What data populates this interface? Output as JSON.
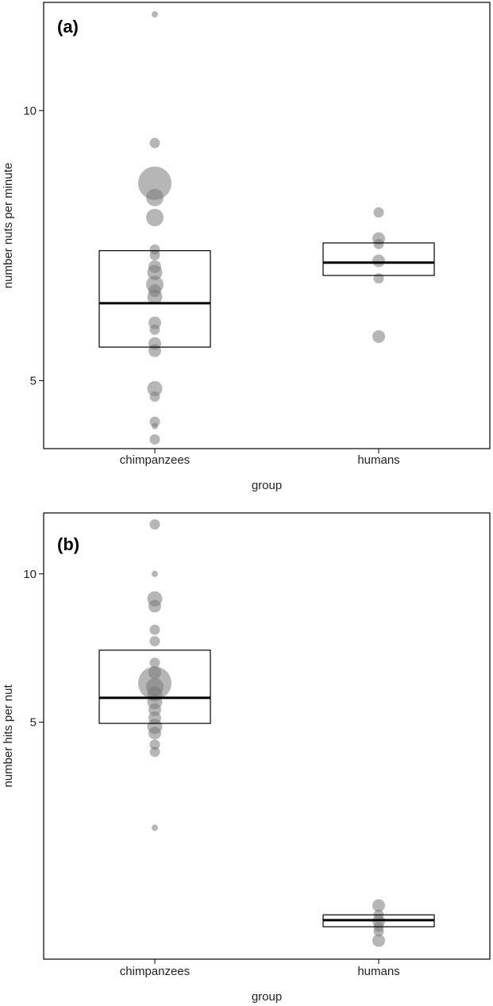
{
  "chart_data": [
    {
      "type": "scatter",
      "panel_label": "(a)",
      "xlabel": "group",
      "ylabel": "number nuts per minute",
      "categories": [
        "chimpanzees",
        "humans"
      ],
      "yscale": "log",
      "yticks": [
        5,
        10
      ],
      "ylim": [
        4.2,
        13.2
      ],
      "points": [
        {
          "group": "chimpanzees",
          "y": 12.8,
          "size": 1
        },
        {
          "group": "chimpanzees",
          "y": 9.2,
          "size": 2
        },
        {
          "group": "chimpanzees",
          "y": 8.3,
          "size": 8
        },
        {
          "group": "chimpanzees",
          "y": 8.0,
          "size": 5
        },
        {
          "group": "chimpanzees",
          "y": 7.6,
          "size": 5
        },
        {
          "group": "chimpanzees",
          "y": 7.0,
          "size": 2
        },
        {
          "group": "chimpanzees",
          "y": 6.9,
          "size": 2
        },
        {
          "group": "chimpanzees",
          "y": 6.7,
          "size": 3
        },
        {
          "group": "chimpanzees",
          "y": 6.6,
          "size": 4
        },
        {
          "group": "chimpanzees",
          "y": 6.4,
          "size": 5
        },
        {
          "group": "chimpanzees",
          "y": 6.3,
          "size": 3
        },
        {
          "group": "chimpanzees",
          "y": 6.2,
          "size": 4
        },
        {
          "group": "chimpanzees",
          "y": 5.8,
          "size": 3
        },
        {
          "group": "chimpanzees",
          "y": 5.7,
          "size": 2
        },
        {
          "group": "chimpanzees",
          "y": 5.5,
          "size": 3
        },
        {
          "group": "chimpanzees",
          "y": 5.4,
          "size": 3
        },
        {
          "group": "chimpanzees",
          "y": 4.9,
          "size": 4
        },
        {
          "group": "chimpanzees",
          "y": 4.8,
          "size": 2
        },
        {
          "group": "chimpanzees",
          "y": 4.5,
          "size": 2
        },
        {
          "group": "chimpanzees",
          "y": 4.45,
          "size": 1
        },
        {
          "group": "chimpanzees",
          "y": 4.3,
          "size": 2
        },
        {
          "group": "humans",
          "y": 7.7,
          "size": 2
        },
        {
          "group": "humans",
          "y": 7.2,
          "size": 3
        },
        {
          "group": "humans",
          "y": 7.1,
          "size": 2
        },
        {
          "group": "humans",
          "y": 6.8,
          "size": 3
        },
        {
          "group": "humans",
          "y": 6.5,
          "size": 2
        },
        {
          "group": "humans",
          "y": 5.6,
          "size": 3
        }
      ],
      "boxes": [
        {
          "group": "chimpanzees",
          "q1": 5.45,
          "median": 6.1,
          "q3": 6.98
        },
        {
          "group": "humans",
          "q1": 6.55,
          "median": 6.77,
          "q3": 7.12
        }
      ]
    },
    {
      "type": "scatter",
      "panel_label": "(b)",
      "xlabel": "group",
      "ylabel": "number hits per nut",
      "categories": [
        "chimpanzees",
        "humans"
      ],
      "yscale": "log",
      "yticks": [
        5,
        10
      ],
      "ylim": [
        1.65,
        13.3
      ],
      "points": [
        {
          "group": "chimpanzees",
          "y": 12.6,
          "size": 2
        },
        {
          "group": "chimpanzees",
          "y": 10.0,
          "size": 1
        },
        {
          "group": "chimpanzees",
          "y": 8.9,
          "size": 4
        },
        {
          "group": "chimpanzees",
          "y": 8.6,
          "size": 3
        },
        {
          "group": "chimpanzees",
          "y": 7.7,
          "size": 2
        },
        {
          "group": "chimpanzees",
          "y": 7.3,
          "size": 2
        },
        {
          "group": "chimpanzees",
          "y": 6.6,
          "size": 2
        },
        {
          "group": "chimpanzees",
          "y": 6.3,
          "size": 3
        },
        {
          "group": "chimpanzees",
          "y": 6.0,
          "size": 8
        },
        {
          "group": "chimpanzees",
          "y": 5.9,
          "size": 5
        },
        {
          "group": "chimpanzees",
          "y": 5.7,
          "size": 4
        },
        {
          "group": "chimpanzees",
          "y": 5.5,
          "size": 4
        },
        {
          "group": "chimpanzees",
          "y": 5.3,
          "size": 3
        },
        {
          "group": "chimpanzees",
          "y": 5.1,
          "size": 3
        },
        {
          "group": "chimpanzees",
          "y": 4.9,
          "size": 4
        },
        {
          "group": "chimpanzees",
          "y": 4.75,
          "size": 3
        },
        {
          "group": "chimpanzees",
          "y": 4.5,
          "size": 2
        },
        {
          "group": "chimpanzees",
          "y": 4.35,
          "size": 2
        },
        {
          "group": "chimpanzees",
          "y": 3.05,
          "size": 1
        },
        {
          "group": "humans",
          "y": 2.12,
          "size": 3
        },
        {
          "group": "humans",
          "y": 2.03,
          "size": 2
        },
        {
          "group": "humans",
          "y": 1.97,
          "size": 3
        },
        {
          "group": "humans",
          "y": 1.92,
          "size": 2
        },
        {
          "group": "humans",
          "y": 1.88,
          "size": 2
        },
        {
          "group": "humans",
          "y": 1.8,
          "size": 3
        }
      ],
      "boxes": [
        {
          "group": "chimpanzees",
          "q1": 4.97,
          "median": 5.6,
          "q3": 7.0
        },
        {
          "group": "humans",
          "q1": 1.92,
          "median": 1.98,
          "q3": 2.03
        }
      ]
    }
  ]
}
